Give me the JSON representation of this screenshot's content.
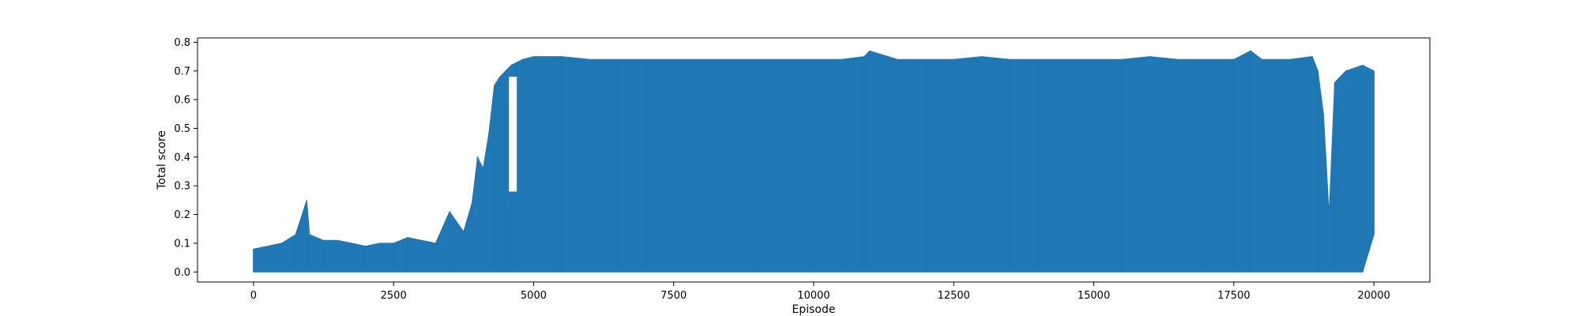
{
  "chart_data": {
    "type": "line",
    "title": "",
    "xlabel": "Episode",
    "ylabel": "Total score",
    "xlim": [
      -1000,
      21000
    ],
    "ylim": [
      -0.035,
      0.815
    ],
    "xticks": [
      0,
      2500,
      5000,
      7500,
      10000,
      12500,
      15000,
      17500,
      20000
    ],
    "xtick_labels": [
      "0",
      "2500",
      "5000",
      "7500",
      "10000",
      "12500",
      "15000",
      "17500",
      "20000"
    ],
    "yticks": [
      0.0,
      0.1,
      0.2,
      0.3,
      0.4,
      0.5,
      0.6,
      0.7,
      0.8
    ],
    "ytick_labels": [
      "0.0",
      "0.1",
      "0.2",
      "0.3",
      "0.4",
      "0.5",
      "0.6",
      "0.7",
      "0.8"
    ],
    "grid": false,
    "legend": "none",
    "series": [
      {
        "color": "#1f77b4",
        "x": [
          0,
          250,
          500,
          750,
          950,
          1000,
          1250,
          1500,
          1750,
          2000,
          2250,
          2500,
          2750,
          3000,
          3250,
          3500,
          3750,
          3900,
          4000,
          4100,
          4200,
          4300,
          4400,
          4500,
          4600,
          4700,
          4800,
          5000,
          5500,
          6000,
          6500,
          7000,
          7500,
          8000,
          8500,
          9000,
          9500,
          10000,
          10500,
          10900,
          11000,
          11500,
          12000,
          12500,
          13000,
          13500,
          14000,
          14500,
          15000,
          15500,
          16000,
          16500,
          17000,
          17500,
          17800,
          18000,
          18500,
          18900,
          19000,
          19100,
          19200,
          19300,
          19500,
          19800,
          20000
        ],
        "upper": [
          0.08,
          0.09,
          0.1,
          0.13,
          0.25,
          0.13,
          0.11,
          0.11,
          0.1,
          0.09,
          0.1,
          0.1,
          0.12,
          0.11,
          0.1,
          0.21,
          0.14,
          0.24,
          0.4,
          0.36,
          0.48,
          0.65,
          0.68,
          0.7,
          0.72,
          0.73,
          0.74,
          0.75,
          0.75,
          0.74,
          0.74,
          0.74,
          0.74,
          0.74,
          0.74,
          0.74,
          0.74,
          0.74,
          0.74,
          0.75,
          0.77,
          0.74,
          0.74,
          0.74,
          0.75,
          0.74,
          0.74,
          0.74,
          0.74,
          0.74,
          0.75,
          0.74,
          0.74,
          0.74,
          0.77,
          0.74,
          0.74,
          0.75,
          0.7,
          0.55,
          0.2,
          0.66,
          0.7,
          0.72,
          0.7
        ],
        "lower": [
          0.0,
          0.0,
          0.0,
          0.0,
          0.0,
          0.0,
          0.0,
          0.0,
          0.0,
          0.0,
          0.0,
          0.0,
          0.0,
          0.0,
          0.0,
          0.0,
          0.0,
          0.0,
          0.0,
          0.0,
          0.0,
          0.0,
          0.0,
          0.0,
          0.0,
          0.0,
          0.0,
          0.0,
          0.0,
          0.0,
          0.0,
          0.0,
          0.0,
          0.0,
          0.0,
          0.0,
          0.0,
          0.0,
          0.0,
          0.0,
          0.0,
          0.0,
          0.0,
          0.0,
          0.0,
          0.0,
          0.0,
          0.0,
          0.0,
          0.0,
          0.0,
          0.0,
          0.0,
          0.0,
          0.0,
          0.0,
          0.0,
          0.0,
          0.0,
          0.0,
          0.0,
          0.0,
          0.0,
          0.0,
          0.13
        ]
      }
    ],
    "gaps": [
      {
        "x": [
          4560,
          4700
        ],
        "low": 0.28,
        "high": 0.68
      }
    ]
  }
}
